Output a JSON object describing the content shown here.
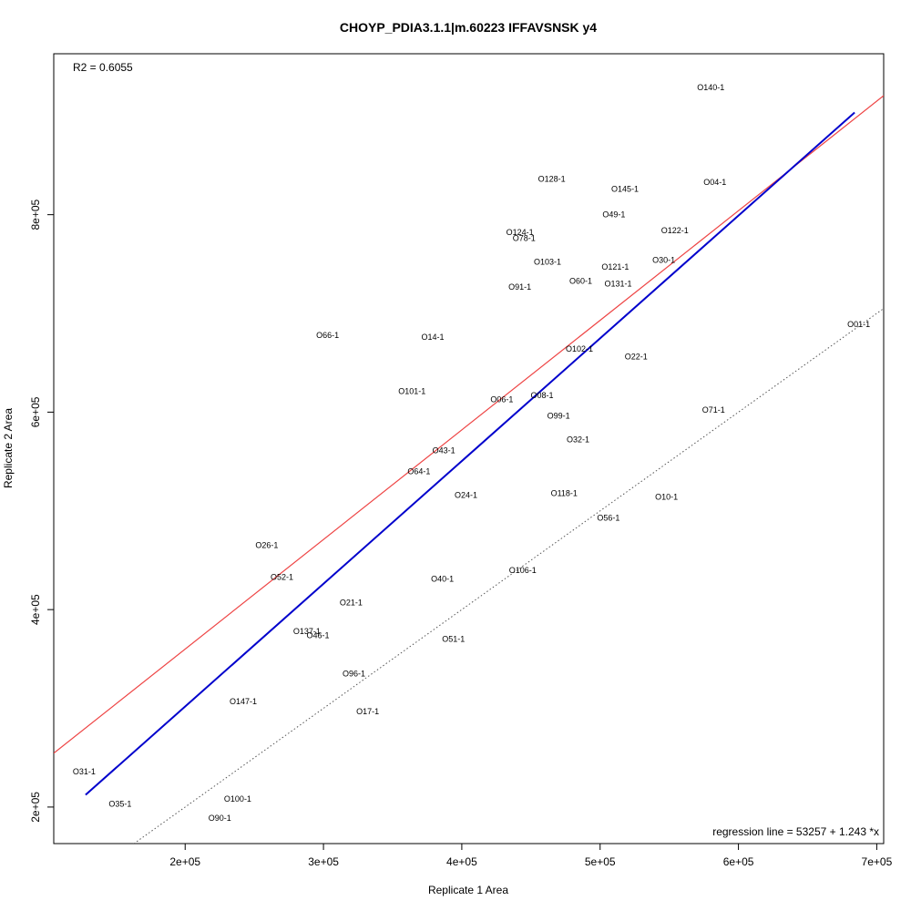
{
  "chart_data": {
    "type": "scatter",
    "title": "CHOYP_PDIA3.1.1|m.60223 IFFAVSNSK y4",
    "xlabel": "Replicate 1 Area",
    "ylabel": "Replicate 2 Area",
    "xlim": [
      105000,
      705000
    ],
    "ylim": [
      163000,
      963000
    ],
    "x_ticks": [
      {
        "value": 200000,
        "label": "2e+05"
      },
      {
        "value": 300000,
        "label": "3e+05"
      },
      {
        "value": 400000,
        "label": "4e+05"
      },
      {
        "value": 500000,
        "label": "5e+05"
      },
      {
        "value": 600000,
        "label": "6e+05"
      },
      {
        "value": 700000,
        "label": "7e+05"
      }
    ],
    "y_ticks": [
      {
        "value": 200000,
        "label": "2e+05"
      },
      {
        "value": 400000,
        "label": "4e+05"
      },
      {
        "value": 600000,
        "label": "6e+05"
      },
      {
        "value": 800000,
        "label": "8e+05"
      }
    ],
    "r2_label": "R2 = 0.6055",
    "regression_label": "regression line = 53257 + 1.243 *x",
    "regression": {
      "intercept": 53257,
      "slope": 1.243,
      "x_range": [
        128000,
        684000
      ],
      "color": "#0000cc"
    },
    "red_line": {
      "intercept": 138000,
      "slope": 1.11,
      "color": "#ee4444"
    },
    "dotted_line": {
      "intercept": 0,
      "slope": 1.0,
      "color": "#555555"
    },
    "points": [
      {
        "label": "O140-1",
        "x": 580000,
        "y": 929000
      },
      {
        "label": "O128-1",
        "x": 465000,
        "y": 836000
      },
      {
        "label": "O04-1",
        "x": 583000,
        "y": 833000
      },
      {
        "label": "O145-1",
        "x": 518000,
        "y": 826000
      },
      {
        "label": "O49-1",
        "x": 510000,
        "y": 800000
      },
      {
        "label": "O124-1",
        "x": 442000,
        "y": 782000
      },
      {
        "label": "O122-1",
        "x": 554000,
        "y": 784000
      },
      {
        "label": "O78-1",
        "x": 445000,
        "y": 776000
      },
      {
        "label": "O103-1",
        "x": 462000,
        "y": 752000
      },
      {
        "label": "O30-1",
        "x": 546000,
        "y": 754000
      },
      {
        "label": "O121-1",
        "x": 511000,
        "y": 747000
      },
      {
        "label": "O60-1",
        "x": 486000,
        "y": 733000
      },
      {
        "label": "O131-1",
        "x": 513000,
        "y": 730000
      },
      {
        "label": "O91-1",
        "x": 442000,
        "y": 727000
      },
      {
        "label": "O01-1",
        "x": 687000,
        "y": 689000
      },
      {
        "label": "O66-1",
        "x": 303000,
        "y": 678000
      },
      {
        "label": "O14-1",
        "x": 379000,
        "y": 676000
      },
      {
        "label": "O102-1",
        "x": 485000,
        "y": 664000
      },
      {
        "label": "O22-1",
        "x": 526000,
        "y": 656000
      },
      {
        "label": "O101-1",
        "x": 364000,
        "y": 621000
      },
      {
        "label": "O08-1",
        "x": 458000,
        "y": 617000
      },
      {
        "label": "O06-1",
        "x": 429000,
        "y": 613000
      },
      {
        "label": "O71-1",
        "x": 582000,
        "y": 602000
      },
      {
        "label": "O99-1",
        "x": 470000,
        "y": 596000
      },
      {
        "label": "O32-1",
        "x": 484000,
        "y": 572000
      },
      {
        "label": "O43-1",
        "x": 387000,
        "y": 561000
      },
      {
        "label": "O64-1",
        "x": 369000,
        "y": 540000
      },
      {
        "label": "O24-1",
        "x": 403000,
        "y": 516000
      },
      {
        "label": "O118-1",
        "x": 474000,
        "y": 518000
      },
      {
        "label": "O10-1",
        "x": 548000,
        "y": 514000
      },
      {
        "label": "O56-1",
        "x": 506000,
        "y": 493000
      },
      {
        "label": "O26-1",
        "x": 259000,
        "y": 465000
      },
      {
        "label": "O52-1",
        "x": 270000,
        "y": 433000
      },
      {
        "label": "O40-1",
        "x": 386000,
        "y": 431000
      },
      {
        "label": "O106-1",
        "x": 444000,
        "y": 440000
      },
      {
        "label": "O21-1",
        "x": 320000,
        "y": 407000
      },
      {
        "label": "O137-1",
        "x": 288000,
        "y": 378000
      },
      {
        "label": "O46-1",
        "x": 296000,
        "y": 374000
      },
      {
        "label": "O51-1",
        "x": 394000,
        "y": 370000
      },
      {
        "label": "O96-1",
        "x": 322000,
        "y": 335000
      },
      {
        "label": "O147-1",
        "x": 242000,
        "y": 307000
      },
      {
        "label": "O17-1",
        "x": 332000,
        "y": 297000
      },
      {
        "label": "O31-1",
        "x": 127000,
        "y": 236000
      },
      {
        "label": "O35-1",
        "x": 153000,
        "y": 203000
      },
      {
        "label": "O100-1",
        "x": 238000,
        "y": 208000
      },
      {
        "label": "O90-1",
        "x": 225000,
        "y": 189000
      }
    ]
  }
}
